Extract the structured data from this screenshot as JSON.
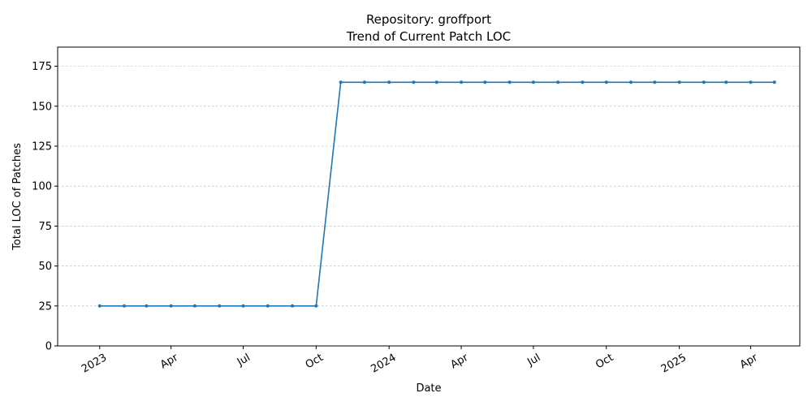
{
  "chart_data": {
    "type": "line",
    "title": "Repository: groffport",
    "subtitle": "Trend of Current Patch LOC",
    "xlabel": "Date",
    "ylabel": "Total LOC of Patches",
    "ylim": [
      0,
      187
    ],
    "xlim": [
      "2022-11-09",
      "2025-06-02"
    ],
    "grid": "horizontal dashed",
    "legend": "none",
    "y_ticks": [
      0,
      25,
      50,
      75,
      100,
      125,
      150,
      175
    ],
    "x_ticks": [
      {
        "date": "2023-01-01",
        "label": "2023"
      },
      {
        "date": "2023-04-01",
        "label": "Apr"
      },
      {
        "date": "2023-07-01",
        "label": "Jul"
      },
      {
        "date": "2023-10-01",
        "label": "Oct"
      },
      {
        "date": "2024-01-01",
        "label": "2024"
      },
      {
        "date": "2024-04-01",
        "label": "Apr"
      },
      {
        "date": "2024-07-01",
        "label": "Jul"
      },
      {
        "date": "2024-10-01",
        "label": "Oct"
      },
      {
        "date": "2025-01-01",
        "label": "2025"
      },
      {
        "date": "2025-04-01",
        "label": "Apr"
      }
    ],
    "series": [
      {
        "color": "#1f77b4",
        "x": [
          "2023-01-01",
          "2023-02-01",
          "2023-03-01",
          "2023-04-01",
          "2023-05-01",
          "2023-06-01",
          "2023-07-01",
          "2023-08-01",
          "2023-09-01",
          "2023-10-01",
          "2023-11-01",
          "2023-12-01",
          "2024-01-01",
          "2024-02-01",
          "2024-03-01",
          "2024-04-01",
          "2024-05-01",
          "2024-06-01",
          "2024-07-01",
          "2024-08-01",
          "2024-09-01",
          "2024-10-01",
          "2024-11-01",
          "2024-12-01",
          "2025-01-01",
          "2025-02-01",
          "2025-03-01",
          "2025-04-01",
          "2025-05-01"
        ],
        "values": [
          25,
          25,
          25,
          25,
          25,
          25,
          25,
          25,
          25,
          25,
          165,
          165,
          165,
          165,
          165,
          165,
          165,
          165,
          165,
          165,
          165,
          165,
          165,
          165,
          165,
          165,
          165,
          165,
          165
        ]
      }
    ]
  }
}
